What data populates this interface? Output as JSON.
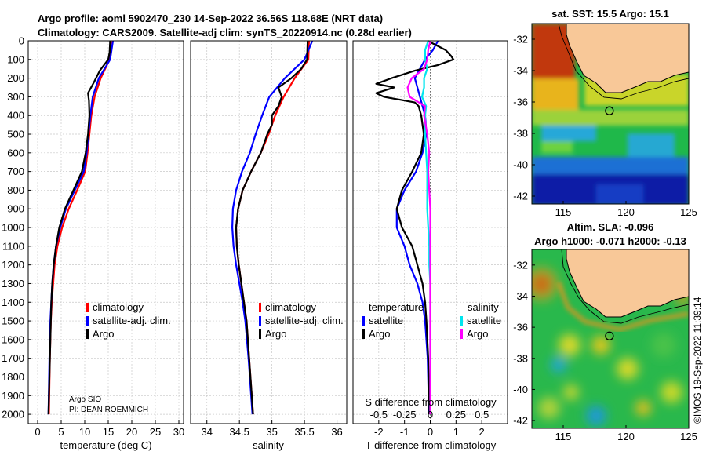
{
  "header": {
    "line1": "Argo profile: aoml 5902470_230 14-Sep-2022 36.56S 118.68E (NRT data)",
    "line2": "Climatology: CARS2009. Satellite-adj clim: synTS_20220914.nc (0.28d earlier)"
  },
  "credit": {
    "org": "Argo SIO",
    "pi": "PI: DEAN ROEMMICH"
  },
  "watermark": "©IMOS 19-Sep-2022 11:39:14",
  "colors": {
    "climatology": "#ff0000",
    "satellite": "#0000ff",
    "argo": "#000000",
    "sat_s": "#00e5ee",
    "argo_s": "#ff00ff",
    "land": "#f8c898"
  },
  "chart_data": [
    {
      "type": "line",
      "title": "",
      "xlabel": "temperature (deg C)",
      "ylabel": "",
      "xlim": [
        -2,
        31
      ],
      "ylim": [
        2050,
        0
      ],
      "x_ticks": [
        "0",
        "5",
        "10",
        "15",
        "20",
        "25",
        "30"
      ],
      "y_ticks": [
        "0",
        "100",
        "200",
        "300",
        "400",
        "500",
        "600",
        "700",
        "800",
        "900",
        "1000",
        "1100",
        "1200",
        "1300",
        "1400",
        "1500",
        "1600",
        "1700",
        "1800",
        "1900",
        "2000"
      ],
      "legend": [
        "climatology",
        "satellite-adj. clim.",
        "Argo"
      ],
      "series": [
        {
          "name": "climatology",
          "depth": [
            0,
            100,
            200,
            300,
            400,
            500,
            600,
            700,
            800,
            900,
            1000,
            1100,
            1200,
            1300,
            1400,
            1500,
            1700,
            2000
          ],
          "values": [
            15.6,
            15.3,
            13.4,
            12.1,
            11.4,
            11.0,
            10.6,
            10.1,
            8.4,
            6.6,
            5.2,
            4.2,
            3.6,
            3.3,
            3.0,
            2.8,
            2.6,
            2.4
          ]
        },
        {
          "name": "satellite-adj. clim.",
          "depth": [
            0,
            100,
            200,
            300,
            400,
            500,
            600,
            700,
            800,
            900,
            1000,
            1100,
            1200,
            1300,
            1400,
            1500,
            1700,
            2000
          ],
          "values": [
            16.0,
            15.4,
            13.0,
            11.7,
            11.2,
            10.8,
            10.4,
            9.8,
            7.9,
            6.0,
            4.8,
            3.9,
            3.4,
            3.1,
            2.9,
            2.7,
            2.5,
            2.3
          ]
        },
        {
          "name": "Argo",
          "depth": [
            0,
            60,
            100,
            160,
            220,
            280,
            320,
            400,
            500,
            600,
            700,
            800,
            900,
            1000,
            1100,
            1200,
            1300,
            1400,
            1600,
            1800,
            2000
          ],
          "values": [
            15.4,
            15.3,
            15.0,
            13.2,
            12.0,
            10.7,
            10.9,
            11.0,
            10.7,
            10.2,
            9.4,
            7.6,
            5.8,
            4.6,
            3.9,
            3.4,
            3.1,
            2.9,
            2.7,
            2.5,
            2.3
          ]
        }
      ]
    },
    {
      "type": "line",
      "title": "",
      "xlabel": "salinity",
      "ylabel": "",
      "xlim": [
        33.75,
        36.15
      ],
      "ylim": [
        2050,
        0
      ],
      "x_ticks": [
        "34",
        "34.5",
        "35",
        "35.5",
        "36"
      ],
      "y_ticks": [],
      "legend": [
        "climatology",
        "satellite-adj. clim.",
        "Argo"
      ],
      "series": [
        {
          "name": "climatology",
          "depth": [
            0,
            100,
            200,
            300,
            400,
            500,
            600,
            700,
            800,
            900,
            1000,
            1100,
            1200,
            1300,
            1400,
            1500,
            1700,
            2000
          ],
          "values": [
            35.57,
            35.56,
            35.35,
            35.18,
            35.05,
            34.95,
            34.83,
            34.68,
            34.55,
            34.48,
            34.45,
            34.46,
            34.49,
            34.53,
            34.57,
            34.61,
            34.65,
            34.71
          ]
        },
        {
          "name": "satellite-adj. clim.",
          "depth": [
            0,
            60,
            100,
            200,
            300,
            400,
            500,
            600,
            700,
            800,
            900,
            1000,
            1100,
            1200,
            1300,
            1400,
            1500,
            1700,
            2000
          ],
          "values": [
            35.62,
            35.55,
            35.5,
            35.2,
            34.96,
            34.85,
            34.75,
            34.66,
            34.54,
            34.45,
            34.4,
            34.39,
            34.41,
            34.45,
            34.5,
            34.55,
            34.59,
            34.64,
            34.7
          ]
        },
        {
          "name": "Argo",
          "depth": [
            0,
            100,
            150,
            200,
            250,
            300,
            350,
            400,
            450,
            500,
            600,
            700,
            800,
            900,
            1000,
            1100,
            1200,
            1300,
            1400,
            1500,
            1700,
            2000
          ],
          "values": [
            35.55,
            35.54,
            35.45,
            35.3,
            35.1,
            35.15,
            35.1,
            35.0,
            35.0,
            34.93,
            34.83,
            34.68,
            34.55,
            34.48,
            34.45,
            34.46,
            34.49,
            34.53,
            34.57,
            34.61,
            34.65,
            34.71
          ]
        }
      ]
    },
    {
      "type": "line",
      "title": "",
      "xlabel": "T difference from climatology",
      "ylabel": "",
      "top_label": "S difference from climatology",
      "xlim": [
        -3,
        3
      ],
      "ylim": [
        2050,
        0
      ],
      "x_ticks": [
        "-2",
        "-1",
        "0",
        "1",
        "2"
      ],
      "x_ticks_top": [
        "-0.5",
        "-0.25",
        "0",
        "0.25",
        "0.5"
      ],
      "y_ticks": [],
      "legend_t": [
        "temperature",
        "satellite",
        "Argo"
      ],
      "legend_s": [
        "salinity",
        "satellite",
        "Argo"
      ],
      "series": [
        {
          "name": "T satellite",
          "depth": [
            0,
            50,
            100,
            150,
            200,
            250,
            300,
            350,
            400,
            500,
            600,
            700,
            800,
            900,
            1000,
            1100,
            1200,
            1300,
            1400,
            1500,
            1700,
            2000
          ],
          "values": [
            0.3,
            0.1,
            -0.2,
            -0.4,
            -0.6,
            -0.5,
            -0.4,
            -0.3,
            -0.2,
            -0.15,
            -0.3,
            -0.55,
            -1.0,
            -1.3,
            -1.3,
            -1.0,
            -0.8,
            -0.5,
            -0.3,
            -0.2,
            -0.1,
            -0.05
          ]
        },
        {
          "name": "T Argo",
          "depth": [
            0,
            50,
            80,
            100,
            130,
            160,
            200,
            230,
            250,
            280,
            300,
            330,
            350,
            400,
            500,
            600,
            700,
            800,
            900,
            1000,
            1050,
            1100,
            1200,
            1300,
            1400,
            1500,
            1700,
            2000
          ],
          "values": [
            -0.1,
            0.6,
            0.8,
            0.9,
            0.3,
            -0.6,
            -1.5,
            -2.1,
            -1.4,
            -2.1,
            -1.8,
            -0.6,
            -0.45,
            -0.35,
            -0.25,
            -0.35,
            -0.7,
            -1.1,
            -1.3,
            -1.1,
            -0.9,
            -0.7,
            -0.5,
            -0.3,
            -0.2,
            -0.15,
            -0.08,
            -0.03
          ]
        },
        {
          "name": "S satellite",
          "depth": [
            0,
            50,
            100,
            150,
            200,
            250,
            300,
            350,
            400,
            500,
            600,
            700,
            800,
            900,
            1000,
            1100,
            1200,
            1300,
            1500,
            2000
          ],
          "values": [
            -0.02,
            -0.05,
            -0.05,
            -0.03,
            -0.06,
            -0.06,
            -0.08,
            -0.04,
            -0.05,
            -0.05,
            -0.04,
            -0.03,
            -0.03,
            -0.03,
            -0.02,
            -0.01,
            -0.01,
            0.0,
            0.0,
            0.0
          ]
        },
        {
          "name": "S Argo",
          "depth": [
            0,
            50,
            100,
            150,
            200,
            250,
            300,
            350,
            400,
            500,
            600,
            700,
            800,
            900,
            1000,
            1100,
            1200,
            1300,
            1500,
            2000
          ],
          "values": [
            0.0,
            -0.02,
            -0.03,
            -0.06,
            -0.18,
            -0.22,
            -0.2,
            -0.05,
            -0.06,
            -0.03,
            -0.01,
            -0.02,
            -0.01,
            0.0,
            0.0,
            0.0,
            0.0,
            0.0,
            0.0,
            0.0
          ]
        }
      ]
    },
    {
      "type": "heatmap",
      "title": "sat. SST: 15.5  Argo: 15.1",
      "xlim": [
        112.5,
        125
      ],
      "ylim": [
        -42.5,
        -31
      ],
      "x_ticks": [
        "115",
        "120",
        "125"
      ],
      "y_ticks": [
        "-32",
        "-34",
        "-36",
        "-38",
        "-40",
        "-42"
      ],
      "marker": {
        "lon": 118.68,
        "lat": -36.56
      }
    },
    {
      "type": "heatmap",
      "title": "Altim. SLA: -0.096",
      "subtitle": "Argo h1000: -0.071  h2000: -0.13",
      "xlim": [
        112.5,
        125
      ],
      "ylim": [
        -42.5,
        -31
      ],
      "x_ticks": [
        "115",
        "120",
        "125"
      ],
      "y_ticks": [
        "-32",
        "-34",
        "-36",
        "-38",
        "-40",
        "-42"
      ],
      "marker": {
        "lon": 118.68,
        "lat": -36.56
      }
    }
  ]
}
